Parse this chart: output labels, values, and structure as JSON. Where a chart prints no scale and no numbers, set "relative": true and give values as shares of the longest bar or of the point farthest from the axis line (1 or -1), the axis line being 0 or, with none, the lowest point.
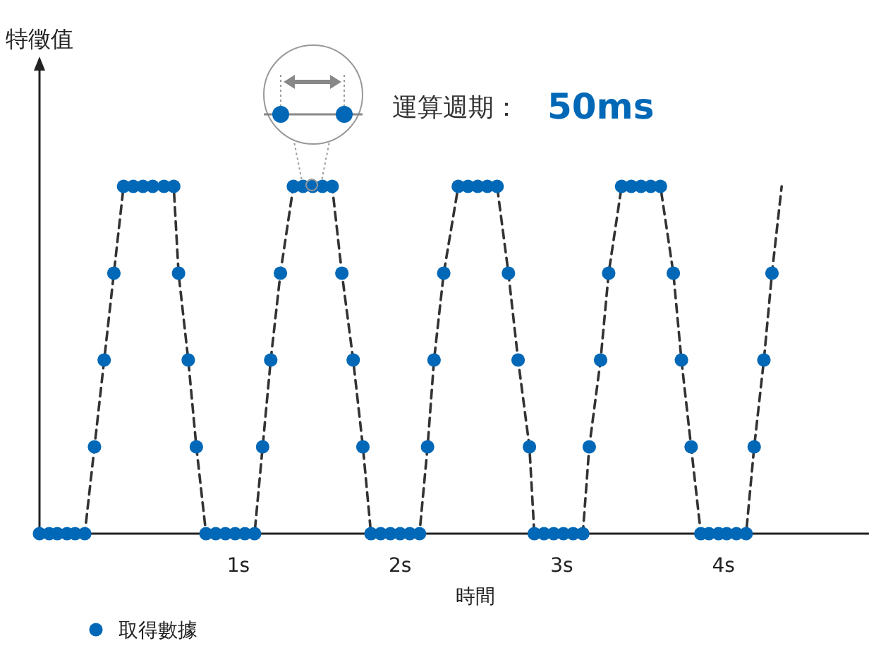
{
  "chart_data": {
    "type": "scatter",
    "relative": true,
    "xlabel": "時間",
    "annotations": [
      "運算週期：",
      "50ms",
      "特徵值"
    ],
    "xlim": [
      -0.23,
      4.9
    ],
    "xticks": [
      {
        "value": 1,
        "label": "1s"
      },
      {
        "value": 2,
        "label": "2s"
      },
      {
        "value": 3,
        "label": "3s"
      },
      {
        "value": 4,
        "label": "4s"
      }
    ],
    "legend": "bottom left",
    "grid": false,
    "series": [
      {
        "type": "line",
        "color": "#333333",
        "marker": "none",
        "line_style": "dashed",
        "x": [
          -0.23,
          0.05,
          0.11,
          0.17,
          0.23,
          0.29,
          0.6,
          0.63,
          0.69,
          0.74,
          0.8,
          1.1,
          1.15,
          1.2,
          1.26,
          1.34,
          1.58,
          1.64,
          1.71,
          1.77,
          1.82,
          2.12,
          2.17,
          2.21,
          2.27,
          2.36,
          2.6,
          2.67,
          2.73,
          2.8,
          2.83,
          3.13,
          3.17,
          3.24,
          3.29,
          3.37,
          3.61,
          3.69,
          3.74,
          3.8,
          3.86,
          4.14,
          4.19,
          4.25,
          4.3,
          4.36
        ],
        "values": [
          0,
          0,
          0.25,
          0.5,
          0.75,
          1,
          1,
          0.75,
          0.5,
          0.25,
          0,
          0,
          0.25,
          0.5,
          0.75,
          1,
          1,
          0.75,
          0.5,
          0.25,
          0,
          0,
          0.25,
          0.5,
          0.75,
          1,
          1,
          0.75,
          0.5,
          0.25,
          0,
          0,
          0.25,
          0.5,
          0.75,
          1,
          1,
          0.75,
          0.5,
          0.25,
          0,
          0,
          0.25,
          0.5,
          0.75,
          1
        ]
      },
      {
        "name": "取得數據",
        "color": "#0068b7",
        "marker": "circle",
        "x": [
          -0.23,
          -0.17,
          -0.12,
          -0.06,
          -0.01,
          0.05,
          0.11,
          0.17,
          0.23,
          0.29,
          0.35,
          0.41,
          0.47,
          0.54,
          0.6,
          0.63,
          0.69,
          0.74,
          0.8,
          0.86,
          0.92,
          0.98,
          1.04,
          1.1,
          1.15,
          1.2,
          1.26,
          1.34,
          1.4,
          1.46,
          1.52,
          1.58,
          1.64,
          1.71,
          1.77,
          1.82,
          1.88,
          1.94,
          2.0,
          2.06,
          2.12,
          2.17,
          2.21,
          2.27,
          2.36,
          2.42,
          2.48,
          2.54,
          2.6,
          2.67,
          2.73,
          2.8,
          2.83,
          2.89,
          2.95,
          3.01,
          3.07,
          3.13,
          3.17,
          3.24,
          3.29,
          3.37,
          3.43,
          3.49,
          3.55,
          3.61,
          3.69,
          3.74,
          3.8,
          3.86,
          3.91,
          3.97,
          4.02,
          4.08,
          4.14,
          4.19,
          4.25,
          4.3
        ],
        "values": [
          0,
          0,
          0,
          0,
          0,
          0,
          0.25,
          0.5,
          0.75,
          1,
          1,
          1,
          1,
          1,
          1,
          0.75,
          0.5,
          0.25,
          0,
          0,
          0,
          0,
          0,
          0,
          0.25,
          0.5,
          0.75,
          1,
          1,
          1,
          1,
          1,
          0.75,
          0.5,
          0.25,
          0,
          0,
          0,
          0,
          0,
          0,
          0.25,
          0.5,
          0.75,
          1,
          1,
          1,
          1,
          1,
          0.75,
          0.5,
          0.25,
          0,
          0,
          0,
          0,
          0,
          0,
          0.25,
          0.5,
          0.75,
          1,
          1,
          1,
          1,
          1,
          0.75,
          0.5,
          0.25,
          0,
          0,
          0,
          0,
          0,
          0,
          0.25,
          0.5,
          0.75
        ]
      }
    ]
  }
}
